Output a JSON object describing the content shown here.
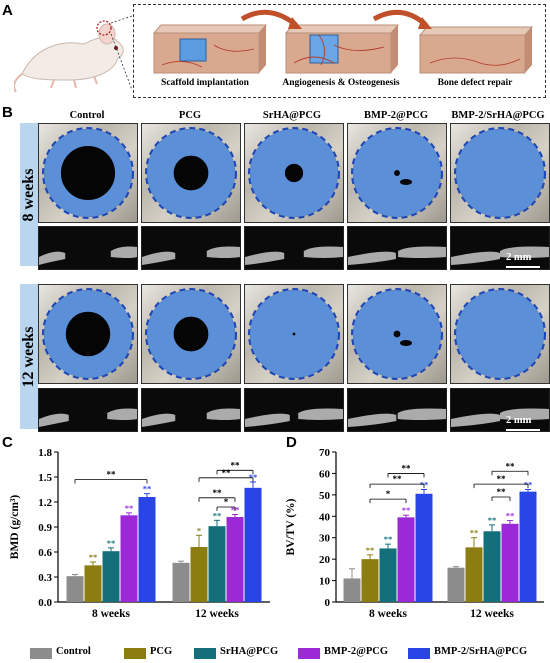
{
  "panels": {
    "A": "A",
    "B": "B",
    "C": "C",
    "D": "D"
  },
  "panel_a": {
    "steps": [
      "Scaffold implantation",
      "Angiogenesis & Osteogenesis",
      "Bone defect repair"
    ]
  },
  "panel_b": {
    "conditions": [
      "Control",
      "PCG",
      "SrHA@PCG",
      "BMP-2@PCG",
      "BMP-2/SrHA@PCG"
    ],
    "timepoints": [
      "8 weeks",
      "12 weeks"
    ],
    "scale_bar": "2 mm",
    "defect_fill_fraction": [
      [
        0.35,
        0.55,
        0.72,
        0.97,
        1.0
      ],
      [
        0.45,
        0.55,
        0.88,
        0.98,
        1.0
      ]
    ]
  },
  "legend": [
    "Control",
    "PCG",
    "SrHA@PCG",
    "BMP-2@PCG",
    "BMP-2/SrHA@PCG"
  ],
  "colors": {
    "Control": "#8c8c8c",
    "PCG": "#8b7d10",
    "SrHA@PCG": "#13707a",
    "BMP-2@PCG": "#9b2ad6",
    "BMP-2/SrHA@PCG": "#2a45e6",
    "defect_blue": "#5b8fd8",
    "week_band": "#b9d6ee"
  },
  "chart_data": [
    {
      "type": "bar",
      "panel": "C",
      "ylabel": "BMD (g/cm³)",
      "ylim": [
        0,
        1.8
      ],
      "yticks": [
        "0.0",
        "0.3",
        "0.6",
        "0.9",
        "1.2",
        "1.5",
        "1.8"
      ],
      "categories": [
        "8 weeks",
        "12 weeks"
      ],
      "series": [
        {
          "name": "Control",
          "values": [
            0.31,
            0.47
          ],
          "errors": [
            0.02,
            0.02
          ],
          "sig": [
            "",
            ""
          ]
        },
        {
          "name": "PCG",
          "values": [
            0.44,
            0.66
          ],
          "errors": [
            0.04,
            0.14
          ],
          "sig": [
            "**",
            "*"
          ]
        },
        {
          "name": "SrHA@PCG",
          "values": [
            0.61,
            0.91
          ],
          "errors": [
            0.04,
            0.07
          ],
          "sig": [
            "**",
            "**"
          ]
        },
        {
          "name": "BMP-2@PCG",
          "values": [
            1.04,
            1.02
          ],
          "errors": [
            0.03,
            0.03
          ],
          "sig": [
            "**",
            "**"
          ]
        },
        {
          "name": "BMP-2/SrHA@PCG",
          "values": [
            1.26,
            1.37
          ],
          "errors": [
            0.04,
            0.07
          ],
          "sig": [
            "**",
            "**"
          ]
        }
      ]
    },
    {
      "type": "bar",
      "panel": "D",
      "ylabel": "BV/TV (%)",
      "ylim": [
        0,
        70
      ],
      "yticks": [
        "0",
        "10",
        "20",
        "30",
        "40",
        "50",
        "60",
        "70"
      ],
      "categories": [
        "8 weeks",
        "12 weeks"
      ],
      "series": [
        {
          "name": "Control",
          "values": [
            11,
            16
          ],
          "errors": [
            4.5,
            0.5
          ],
          "sig": [
            "",
            ""
          ]
        },
        {
          "name": "PCG",
          "values": [
            20,
            25.5
          ],
          "errors": [
            2,
            4.5
          ],
          "sig": [
            "**",
            "**"
          ]
        },
        {
          "name": "SrHA@PCG",
          "values": [
            25,
            33
          ],
          "errors": [
            2,
            3
          ],
          "sig": [
            "**",
            "**"
          ]
        },
        {
          "name": "BMP-2@PCG",
          "values": [
            39.5,
            36.5
          ],
          "errors": [
            1,
            1.5
          ],
          "sig": [
            "**",
            "**"
          ]
        },
        {
          "name": "BMP-2/SrHA@PCG",
          "values": [
            50.5,
            51.5
          ],
          "errors": [
            2,
            1
          ],
          "sig": [
            "**",
            "**"
          ]
        }
      ]
    }
  ],
  "brackets": {
    "C": {
      "g8": [
        "**"
      ],
      "g12": [
        "**",
        "**",
        "**",
        "*"
      ]
    },
    "D": {
      "g8": [
        "**",
        "**",
        "*"
      ],
      "g12": [
        "**",
        "**",
        "**"
      ]
    }
  }
}
